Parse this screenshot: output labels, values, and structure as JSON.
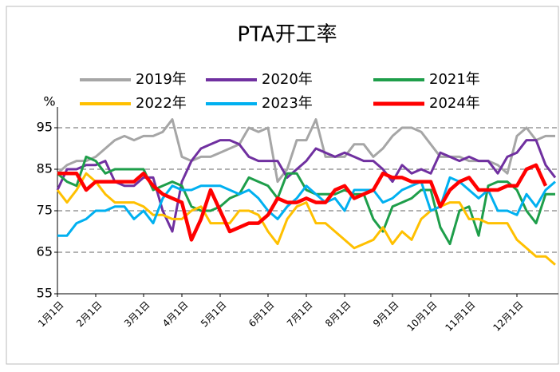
{
  "chart_data": {
    "type": "line",
    "title": "PTA开工率",
    "y_label": "%",
    "categories": [
      "1月1日",
      null,
      null,
      null,
      "2月1日",
      null,
      null,
      null,
      null,
      "3月1日",
      null,
      null,
      null,
      "4月1日",
      null,
      null,
      null,
      "5月1日",
      null,
      null,
      null,
      null,
      "6月1日",
      null,
      null,
      null,
      "7月1日",
      null,
      null,
      null,
      "8月1日",
      null,
      null,
      null,
      null,
      "9月1日",
      null,
      null,
      null,
      "10月1日",
      null,
      null,
      null,
      "11月1日",
      null,
      null,
      null,
      null,
      "12月1日",
      null,
      null,
      null,
      null
    ],
    "series": [
      {
        "name": "2019年",
        "color": "#a6a6a6",
        "values": [
          84,
          86,
          87,
          87,
          88,
          90,
          92,
          93,
          92,
          93,
          93,
          94,
          97,
          88,
          87,
          88,
          88,
          89,
          90,
          91,
          95,
          94,
          95,
          82,
          85,
          92,
          92,
          97,
          88,
          88,
          88,
          91,
          91,
          88,
          90,
          93,
          95,
          95,
          94,
          91,
          88,
          88,
          88,
          87,
          87,
          87,
          86,
          84,
          93,
          95,
          92,
          93,
          93
        ]
      },
      {
        "name": "2020年",
        "color": "#7030a0",
        "values": [
          80,
          85,
          85,
          86,
          86,
          87,
          82,
          81,
          81,
          83,
          83,
          75,
          70,
          82,
          87,
          90,
          91,
          92,
          92,
          91,
          88,
          87,
          87,
          87,
          83,
          85,
          87,
          90,
          89,
          88,
          89,
          88,
          87,
          87,
          85,
          82,
          86,
          84,
          85,
          84,
          89,
          88,
          87,
          88,
          87,
          87,
          84,
          88,
          89,
          92,
          92,
          86,
          83
        ]
      },
      {
        "name": "2021年",
        "color": "#1e9e4a",
        "values": [
          84,
          82,
          81,
          88,
          87,
          84,
          85,
          85,
          85,
          85,
          80,
          81,
          82,
          81,
          76,
          75,
          75,
          76,
          78,
          79,
          83,
          82,
          81,
          78,
          84,
          84,
          80,
          79,
          79,
          79,
          80,
          79,
          79,
          73,
          70,
          76,
          77,
          78,
          80,
          80,
          71,
          67,
          75,
          76,
          69,
          81,
          82,
          82,
          80,
          75,
          72,
          79,
          79
        ]
      },
      {
        "name": "2022年",
        "color": "#ffc000",
        "values": [
          80,
          77,
          80,
          84,
          82,
          79,
          77,
          77,
          77,
          76,
          74,
          74,
          73,
          73,
          75,
          76,
          72,
          72,
          72,
          75,
          75,
          74,
          70,
          67,
          73,
          76,
          77,
          72,
          72,
          70,
          68,
          66,
          67,
          68,
          71,
          67,
          70,
          68,
          73,
          75,
          76,
          77,
          77,
          73,
          73,
          72,
          72,
          72,
          68,
          66,
          64,
          64,
          62
        ]
      },
      {
        "name": "2023年",
        "color": "#00b0f0",
        "values": [
          69,
          69,
          72,
          73,
          75,
          75,
          76,
          76,
          73,
          75,
          72,
          78,
          81,
          80,
          80,
          81,
          81,
          81,
          80,
          79,
          80,
          78,
          75,
          73,
          76,
          78,
          81,
          79,
          77,
          78,
          75,
          80,
          80,
          80,
          77,
          78,
          80,
          81,
          82,
          75,
          76,
          83,
          82,
          80,
          78,
          80,
          75,
          75,
          74,
          79,
          76,
          80,
          82
        ]
      },
      {
        "name": "2024年",
        "color": "#ff0000",
        "values": [
          84,
          84,
          84,
          80,
          82,
          82,
          82,
          82,
          82,
          84,
          81,
          79,
          78,
          77,
          68,
          73,
          80,
          75,
          70,
          71,
          72,
          72,
          74,
          78,
          77,
          77,
          78,
          77,
          77,
          80,
          81,
          78,
          79,
          80,
          84,
          83,
          83,
          82,
          82,
          82,
          76,
          80,
          82,
          83,
          80,
          80,
          80,
          81,
          81,
          85,
          86,
          81,
          null
        ]
      }
    ],
    "ylim": [
      55,
      100
    ],
    "yticks": [
      55,
      65,
      75,
      85,
      95
    ],
    "grid": true
  }
}
